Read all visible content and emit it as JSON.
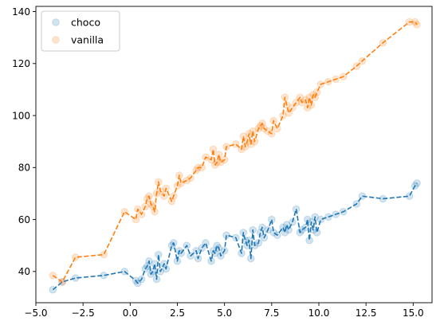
{
  "chart_data": {
    "type": "scatter",
    "title": "",
    "xlabel": "",
    "ylabel": "",
    "xlim": [
      -5.0,
      16.0
    ],
    "ylim": [
      28,
      142
    ],
    "xticks": [
      -5.0,
      -2.5,
      0.0,
      2.5,
      5.0,
      7.5,
      10.0,
      12.5,
      15.0
    ],
    "xtick_labels": [
      "−5.0",
      "−2.5",
      "0.0",
      "2.5",
      "5.0",
      "7.5",
      "10.0",
      "12.5",
      "15.0"
    ],
    "yticks": [
      40,
      60,
      80,
      100,
      120,
      140
    ],
    "ytick_labels": [
      "40",
      "60",
      "80",
      "100",
      "120",
      "140"
    ],
    "grid": false,
    "legend": {
      "position": "top-left"
    },
    "series": [
      {
        "name": "choco",
        "color": "#1f77b4",
        "marker": "circle",
        "marker_alpha": 0.2,
        "line_style": "dashed",
        "x": [
          -4.1,
          -3.6,
          -2.9,
          -1.4,
          -0.3,
          0.3,
          0.4,
          0.6,
          0.8,
          0.9,
          1.0,
          1.1,
          1.2,
          1.3,
          1.4,
          1.5,
          1.6,
          1.8,
          1.9,
          2.2,
          2.3,
          2.5,
          2.6,
          2.7,
          3.0,
          3.2,
          3.5,
          3.6,
          3.8,
          4.0,
          4.3,
          4.4,
          4.5,
          4.6,
          4.7,
          4.8,
          5.0,
          5.1,
          5.6,
          5.9,
          6.0,
          6.1,
          6.2,
          6.3,
          6.4,
          6.5,
          6.6,
          6.8,
          6.9,
          7.0,
          7.1,
          7.3,
          7.5,
          7.6,
          7.8,
          8.1,
          8.2,
          8.3,
          8.4,
          8.6,
          8.8,
          9.0,
          9.1,
          9.3,
          9.4,
          9.5,
          9.6,
          9.7,
          9.8,
          9.9,
          10.1,
          10.5,
          10.9,
          11.3,
          12.0,
          12.3,
          13.4,
          14.8,
          15.1,
          15.2
        ],
        "y": [
          33,
          36,
          37.5,
          38.5,
          40,
          36.5,
          35.5,
          37,
          41,
          42,
          44,
          39,
          40,
          43,
          37,
          46.5,
          40,
          43,
          41,
          50,
          51,
          44,
          48,
          47,
          50,
          46,
          48,
          45,
          49,
          51,
          44,
          48,
          47,
          50,
          49,
          46,
          48,
          54,
          53,
          47,
          55,
          52,
          50,
          52,
          45,
          56,
          50,
          51,
          55,
          57,
          53,
          56,
          60,
          55,
          54,
          57,
          55,
          58,
          56,
          59,
          64,
          55,
          56,
          57,
          60,
          52,
          59,
          56,
          61,
          55,
          60,
          61,
          62,
          63,
          66,
          69,
          68,
          69,
          73,
          74
        ]
      },
      {
        "name": "vanilla",
        "color": "#ff7f0e",
        "marker": "circle",
        "marker_alpha": 0.2,
        "line_style": "dashed",
        "x": [
          -4.1,
          -3.6,
          -2.9,
          -1.4,
          -0.3,
          0.3,
          0.4,
          0.6,
          0.8,
          0.9,
          1.0,
          1.1,
          1.2,
          1.3,
          1.4,
          1.5,
          1.6,
          1.8,
          1.9,
          2.2,
          2.3,
          2.5,
          2.6,
          2.7,
          3.0,
          3.2,
          3.5,
          3.6,
          3.8,
          4.0,
          4.3,
          4.4,
          4.5,
          4.6,
          4.7,
          4.8,
          5.0,
          5.1,
          5.6,
          5.9,
          6.0,
          6.1,
          6.2,
          6.3,
          6.4,
          6.5,
          6.6,
          6.8,
          6.9,
          7.0,
          7.1,
          7.3,
          7.5,
          7.6,
          7.8,
          8.1,
          8.2,
          8.3,
          8.4,
          8.6,
          8.8,
          9.0,
          9.1,
          9.3,
          9.4,
          9.5,
          9.6,
          9.7,
          9.8,
          9.9,
          10.1,
          10.5,
          10.9,
          11.3,
          12.0,
          12.3,
          13.4,
          14.8,
          15.1,
          15.2
        ],
        "y": [
          38.5,
          36,
          45.5,
          46.5,
          63,
          60,
          64,
          62,
          65,
          68,
          69,
          66,
          65,
          63,
          70,
          74.5,
          71,
          69,
          72,
          67,
          69,
          73,
          77,
          74,
          75,
          76,
          79,
          80,
          80,
          84,
          83,
          87,
          81,
          82,
          85,
          82,
          83,
          88,
          89,
          87,
          92,
          88,
          90,
          93,
          89,
          94,
          90,
          95,
          96,
          97,
          95,
          94,
          93,
          98,
          95,
          100,
          107,
          104,
          101,
          103,
          105,
          107,
          105,
          106,
          103,
          107,
          104,
          108,
          107,
          109,
          112,
          113,
          114,
          115,
          119,
          121,
          128,
          136,
          136,
          135
        ]
      }
    ]
  }
}
